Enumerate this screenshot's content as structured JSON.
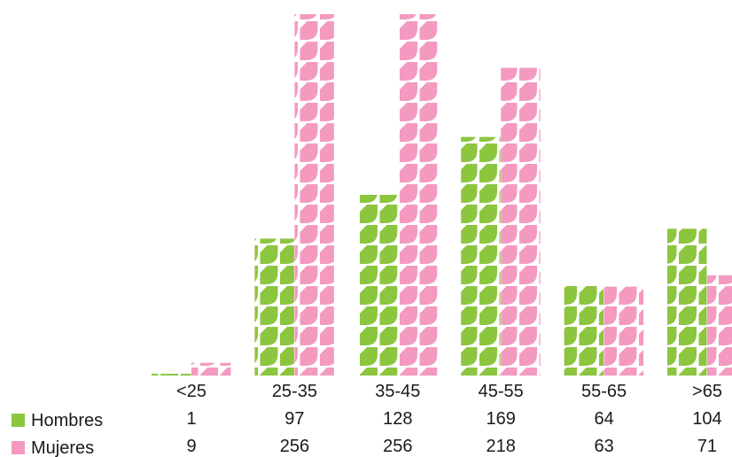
{
  "chart_data": {
    "type": "bar",
    "categories": [
      "<25",
      "25-35",
      "35-45",
      "45-55",
      "55-65",
      ">65"
    ],
    "series": [
      {
        "name": "Hombres",
        "values": [
          1,
          97,
          128,
          169,
          64,
          104
        ],
        "color": "#8cc63f"
      },
      {
        "name": "Mujeres",
        "values": [
          9,
          256,
          256,
          218,
          63,
          71
        ],
        "color": "#f49ac1"
      }
    ],
    "title": "",
    "xlabel": "",
    "ylabel": "",
    "grid": false,
    "legend": "bottom-left table"
  }
}
